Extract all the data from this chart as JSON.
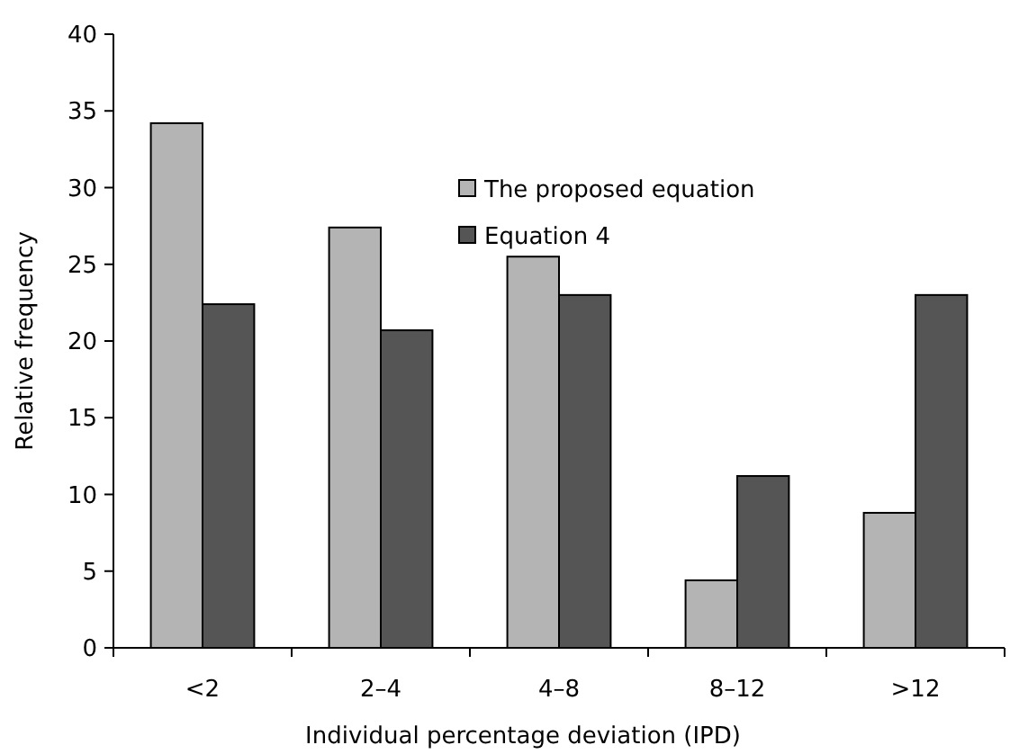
{
  "chart_data": {
    "type": "bar",
    "xlabel": "Individual percentage deviation (IPD)",
    "ylabel": "Relative frequency",
    "categories": [
      "<2",
      "2–4",
      "4–8",
      "8–12",
      ">12"
    ],
    "series": [
      {
        "name": "The proposed equation",
        "color": "#b4b4b4",
        "values": [
          34.2,
          27.4,
          25.5,
          4.4,
          8.8
        ]
      },
      {
        "name": "Equation 4",
        "color": "#555555",
        "values": [
          22.4,
          20.7,
          23.0,
          11.2,
          23.0
        ]
      }
    ],
    "ylim": [
      0,
      40
    ],
    "yticks": [
      0,
      5,
      10,
      15,
      20,
      25,
      30,
      35,
      40
    ],
    "grid": false,
    "legend": "top"
  }
}
